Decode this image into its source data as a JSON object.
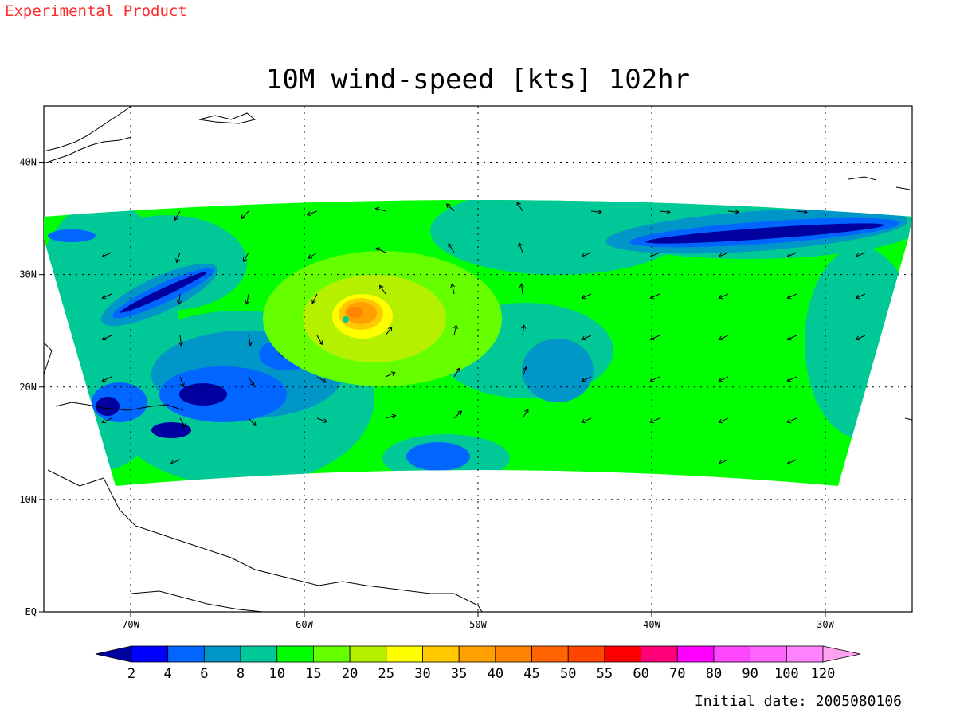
{
  "header_note": "Experimental Product",
  "title": "10M wind-speed [kts] 102hr",
  "footer": "Initial date: 2005080106",
  "map": {
    "lon_range": [
      -75,
      -25
    ],
    "lat_range": [
      0,
      45
    ],
    "lon_ticks": [
      {
        "value": -70,
        "label": "70W"
      },
      {
        "value": -60,
        "label": "60W"
      },
      {
        "value": -50,
        "label": "50W"
      },
      {
        "value": -40,
        "label": "40W"
      },
      {
        "value": -30,
        "label": "30W"
      }
    ],
    "lat_ticks": [
      {
        "value": 0,
        "label": "EQ"
      },
      {
        "value": 10,
        "label": "10N"
      },
      {
        "value": 20,
        "label": "20N"
      },
      {
        "value": 30,
        "label": "30N"
      },
      {
        "value": 40,
        "label": "40N"
      }
    ],
    "grid": true,
    "storm_center": {
      "lon": -57,
      "lat": 26.5,
      "max_speed_kts": 40
    }
  },
  "colorbar": {
    "labels": [
      "2",
      "4",
      "6",
      "8",
      "10",
      "15",
      "20",
      "25",
      "30",
      "35",
      "40",
      "45",
      "50",
      "55",
      "60",
      "70",
      "80",
      "90",
      "100",
      "120"
    ],
    "colors": [
      "#0000a0",
      "#0000ff",
      "#0066ff",
      "#0096c8",
      "#00c896",
      "#00ff00",
      "#66ff00",
      "#b4f000",
      "#ffff00",
      "#ffc800",
      "#ffa000",
      "#ff8200",
      "#ff6400",
      "#ff4600",
      "#ff0000",
      "#ff0078",
      "#ff00ff",
      "#ff46ff",
      "#ff64ff",
      "#ff82ff",
      "#ffa0f0"
    ]
  }
}
